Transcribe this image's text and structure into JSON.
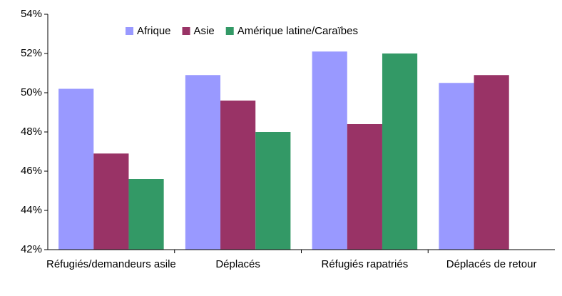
{
  "chart_data": {
    "type": "bar",
    "categories": [
      "Réfugiés/demandeurs asile",
      "Déplacés",
      "Réfugiés rapatriés",
      "Déplacés de retour"
    ],
    "series": [
      {
        "name": "Afrique",
        "color": "#9999ff",
        "values": [
          50.2,
          50.9,
          52.1,
          50.5
        ]
      },
      {
        "name": "Asie",
        "color": "#993366",
        "values": [
          46.9,
          49.6,
          48.4,
          50.9
        ]
      },
      {
        "name": "Amérique latine/Caraïbes",
        "color": "#339966",
        "values": [
          45.6,
          48.0,
          52.0,
          null
        ]
      }
    ],
    "ylim": [
      42,
      54
    ],
    "yticks": [
      {
        "value": 42,
        "label": "42%"
      },
      {
        "value": 44,
        "label": "44%"
      },
      {
        "value": 46,
        "label": "46%"
      },
      {
        "value": 48,
        "label": "48%"
      },
      {
        "value": 50,
        "label": "50%"
      },
      {
        "value": 52,
        "label": "52%"
      },
      {
        "value": 54,
        "label": "54%"
      }
    ],
    "grid": false,
    "legend": "top"
  }
}
